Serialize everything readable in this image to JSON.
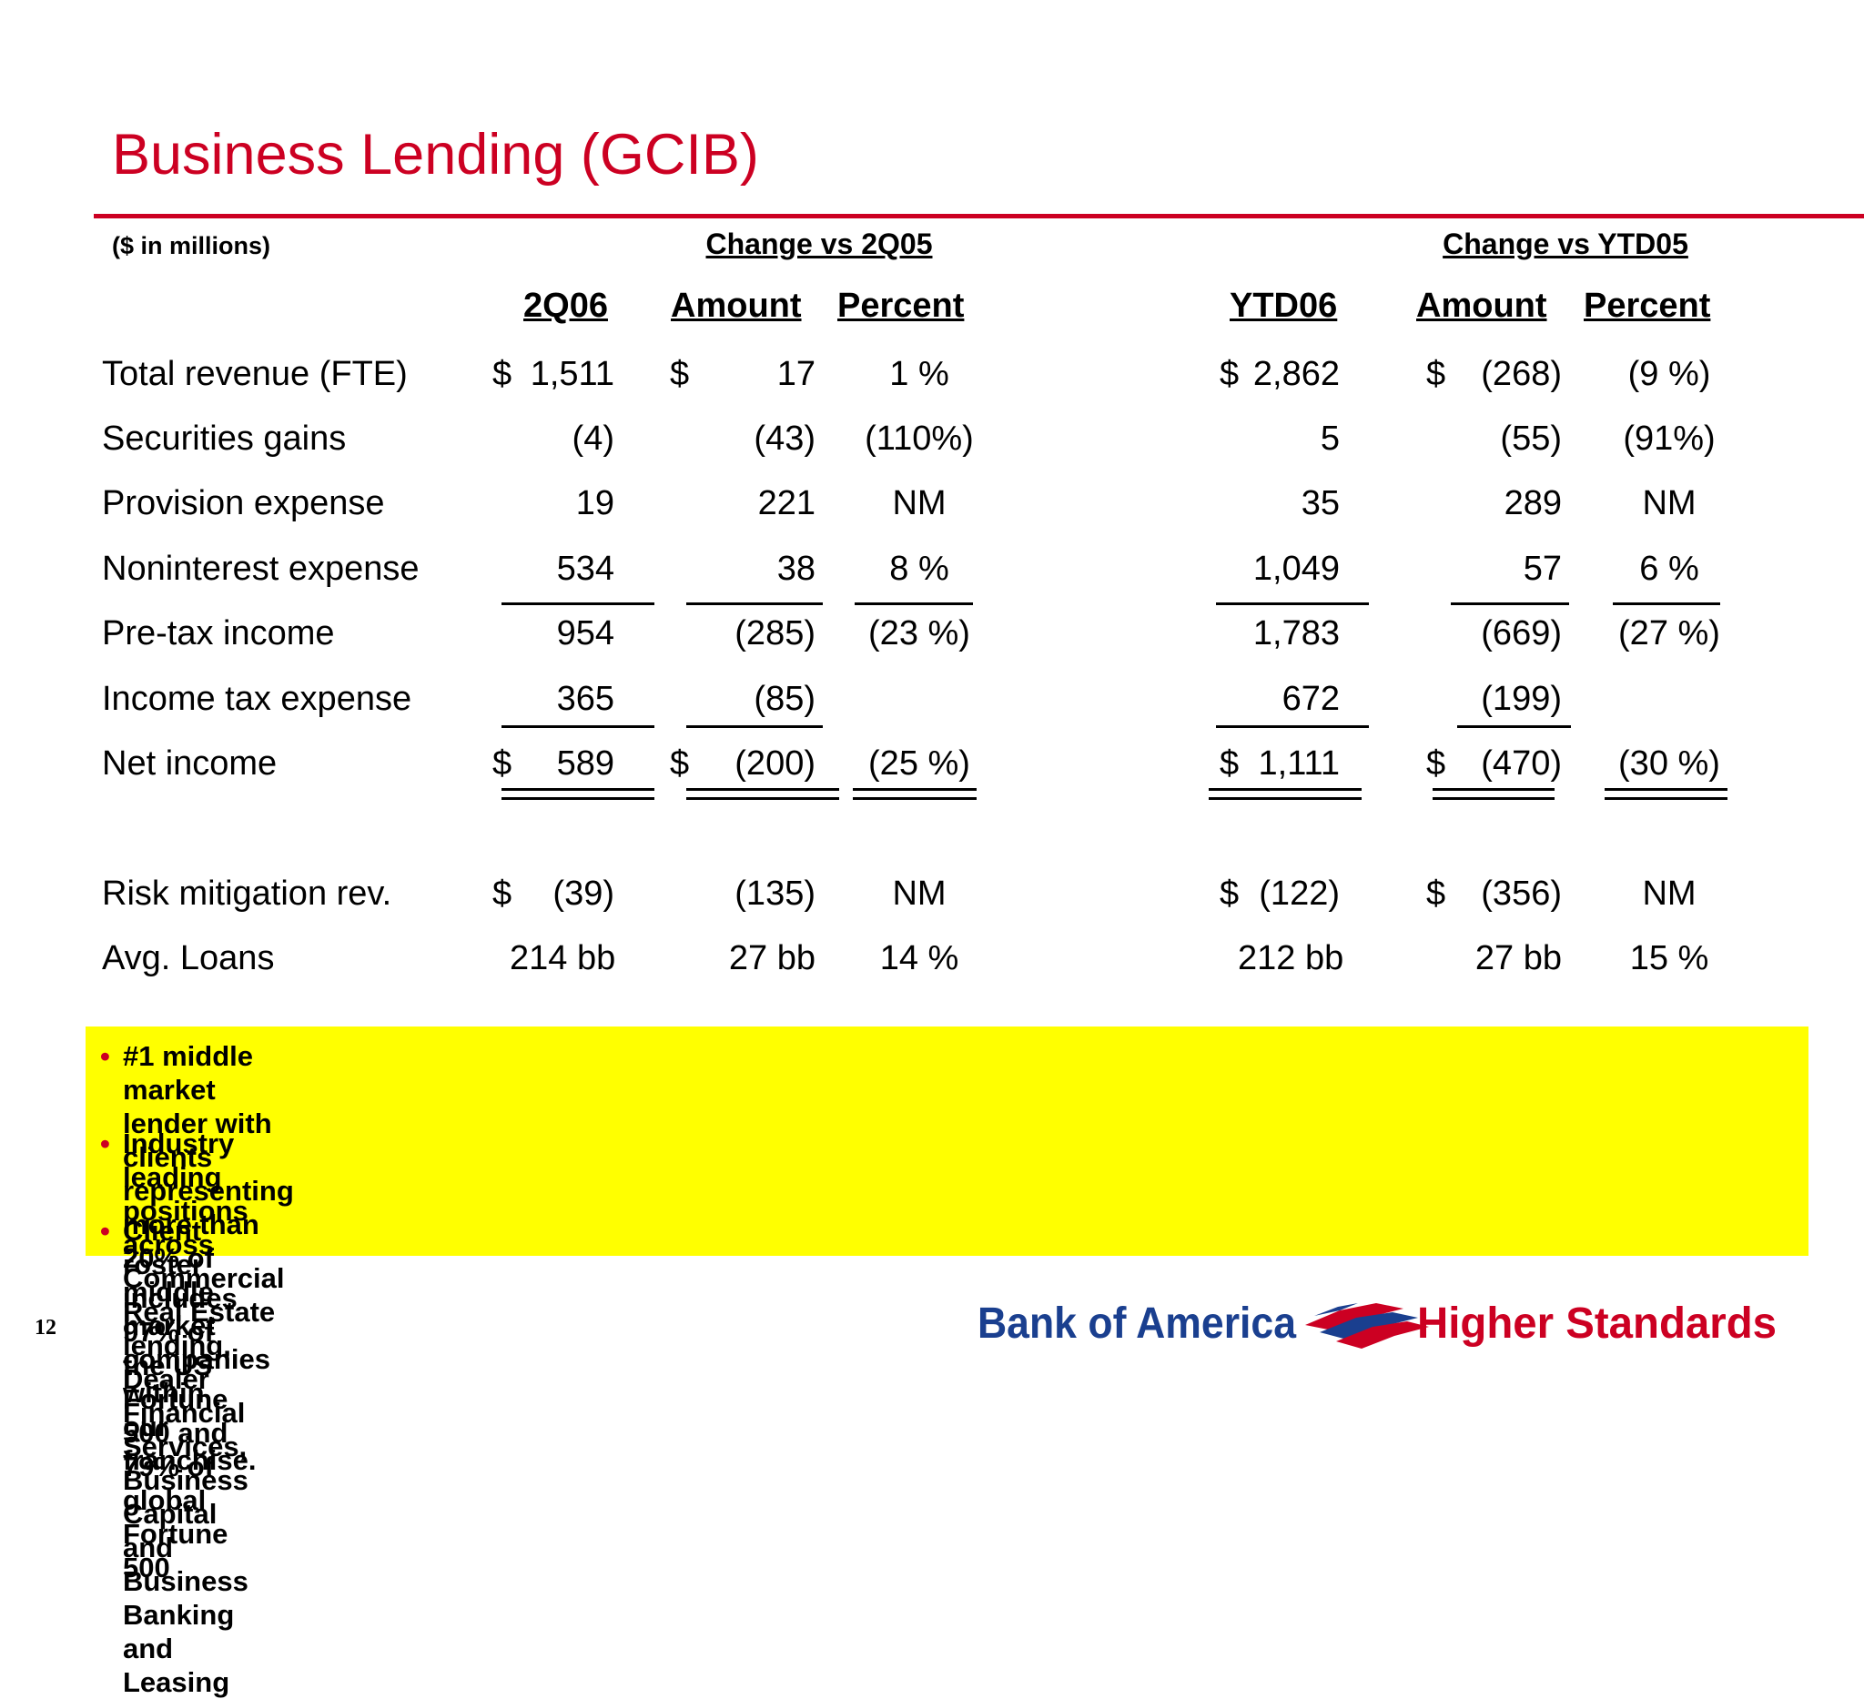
{
  "title": "Business Lending (GCIB)",
  "units_note": "($ in millions)",
  "group_headers": {
    "quarter": "Change vs 2Q05",
    "ytd": "Change vs YTD05"
  },
  "column_headers": [
    "2Q06",
    "Amount",
    "Percent",
    "YTD06",
    "Amount",
    "Percent"
  ],
  "rows": [
    {
      "label": "Total revenue (FTE)",
      "q": {
        "cur": "$",
        "val": "1,511"
      },
      "qa": {
        "cur": "$",
        "val": "17"
      },
      "qp": "1 %",
      "y": {
        "cur": "$",
        "val": "2,862"
      },
      "ya": {
        "cur": "$",
        "val": "(268)"
      },
      "yp": "(9 %)"
    },
    {
      "label": "Securities gains",
      "q": {
        "cur": "",
        "val": "(4)"
      },
      "qa": {
        "cur": "",
        "val": "(43)"
      },
      "qp": "(110%)",
      "y": {
        "cur": "",
        "val": "5"
      },
      "ya": {
        "cur": "",
        "val": "(55)"
      },
      "yp": "(91%)"
    },
    {
      "label": "Provision expense",
      "q": {
        "cur": "",
        "val": "19"
      },
      "qa": {
        "cur": "",
        "val": "221"
      },
      "qp": "NM",
      "y": {
        "cur": "",
        "val": "35"
      },
      "ya": {
        "cur": "",
        "val": "289"
      },
      "yp": "NM"
    },
    {
      "label": "Noninterest expense",
      "q": {
        "cur": "",
        "val": "534"
      },
      "qa": {
        "cur": "",
        "val": "38"
      },
      "qp": "8 %",
      "y": {
        "cur": "",
        "val": "1,049"
      },
      "ya": {
        "cur": "",
        "val": "57"
      },
      "yp": "6 %"
    },
    {
      "label": "Pre-tax income",
      "q": {
        "cur": "",
        "val": "954"
      },
      "qa": {
        "cur": "",
        "val": "(285)"
      },
      "qp": "(23 %)",
      "y": {
        "cur": "",
        "val": "1,783"
      },
      "ya": {
        "cur": "",
        "val": "(669)"
      },
      "yp": "(27 %)"
    },
    {
      "label": "Income tax expense",
      "q": {
        "cur": "",
        "val": "365"
      },
      "qa": {
        "cur": "",
        "val": "(85)"
      },
      "qp": "",
      "y": {
        "cur": "",
        "val": "672"
      },
      "ya": {
        "cur": "",
        "val": "(199)"
      },
      "yp": ""
    },
    {
      "label": "Net income",
      "q": {
        "cur": "$",
        "val": "589"
      },
      "qa": {
        "cur": "$",
        "val": "(200)"
      },
      "qp": "(25 %)",
      "y": {
        "cur": "$",
        "val": "1,111"
      },
      "ya": {
        "cur": "$",
        "val": "(470)"
      },
      "yp": "(30 %)"
    }
  ],
  "extra_rows": [
    {
      "label": "Risk mitigation rev.",
      "q": {
        "cur": "$",
        "val": "(39)"
      },
      "qa": {
        "cur": "",
        "val": "(135)"
      },
      "qp": "NM",
      "y": {
        "cur": "$",
        "val": "(122)"
      },
      "ya": {
        "cur": "$",
        "val": "(356)"
      },
      "yp": "NM"
    },
    {
      "label": "Avg. Loans",
      "q": {
        "cur": "",
        "val": "214 bb"
      },
      "qa": {
        "cur": "",
        "val": "27 bb"
      },
      "qp": "14 %",
      "y": {
        "cur": "",
        "val": "212 bb"
      },
      "ya": {
        "cur": "",
        "val": "27 bb"
      },
      "yp": "15 %"
    }
  ],
  "bullets": [
    {
      "line1": "#1 middle market lender with clients representing more than 20% of middle market companies within",
      "line2": "our franchise."
    },
    {
      "line1": "Industry leading positions across Commercial Real Estate lending, Dealer Financial Services, Business Capital",
      "line2": "and Business Banking and Leasing"
    },
    {
      "line1": "Client roster includes 97% of the US Fortune 500 and 79% of global Fortune 500",
      "line2": ""
    }
  ],
  "bullet_glyph": "•",
  "page_number": "12",
  "logo": {
    "bank_text": "Bank of America",
    "tagline": "Higher Standards",
    "colors": {
      "blue": "#1a3f8f",
      "red": "#cc0022"
    }
  },
  "colors": {
    "title": "#cc0022",
    "highlight": "#ffff00"
  }
}
